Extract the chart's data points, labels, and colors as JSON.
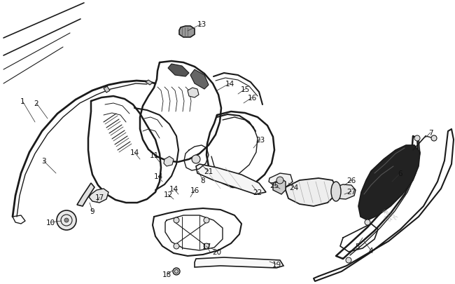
{
  "bg_color": "#ffffff",
  "line_color": "#1a1a1a",
  "fig_width": 6.5,
  "fig_height": 4.06,
  "dpi": 100,
  "label_fontsize": 7.5,
  "lw_main": 1.4,
  "lw_thin": 0.8,
  "lw_thick": 2.0
}
